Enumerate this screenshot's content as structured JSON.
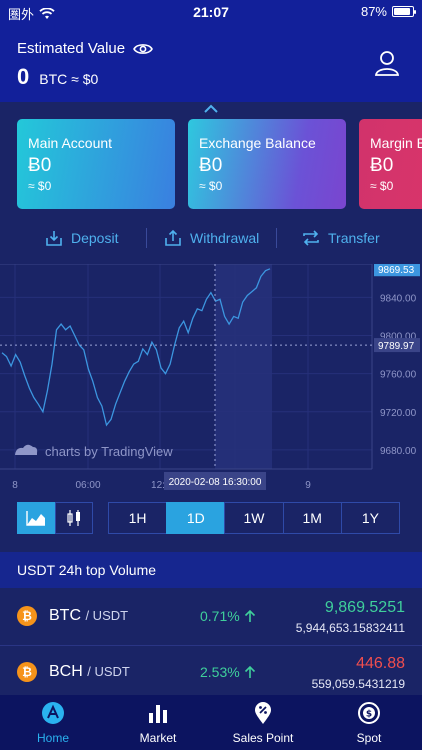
{
  "status_bar": {
    "carrier": "圏外",
    "time": "21:07",
    "battery": "87%",
    "battery_level": 0.87
  },
  "header": {
    "estimated_label": "Estimated Value",
    "estimated_value": "0",
    "estimated_sub": "BTC ≈ $0"
  },
  "cards": [
    {
      "title": "Main Account",
      "amount": "0",
      "fiat": "≈ $0"
    },
    {
      "title": "Exchange Balance",
      "amount": "0",
      "fiat": "≈ $0"
    },
    {
      "title": "Margin B",
      "amount": "0",
      "fiat": "≈ $0"
    }
  ],
  "actions": {
    "deposit": "Deposit",
    "withdrawal": "Withdrawal",
    "transfer": "Transfer"
  },
  "chart": {
    "watermark": "charts by TradingView",
    "price_last": "9869.53",
    "price_cursor": "9789.97",
    "time_cursor": "2020-02-08 16:30:00",
    "x_ticks": [
      "8",
      "06:00",
      "12:",
      "9"
    ],
    "y_ticks": [
      "9840.00",
      "9800.00",
      "9760.00",
      "9720.00",
      "9680.00"
    ],
    "colors": {
      "line": "#3c96e0",
      "highlight": "#242f78",
      "last_badge": "#3c96e0"
    }
  },
  "chart_data": {
    "type": "line",
    "title": "",
    "xlabel": "",
    "ylabel": "",
    "ylim": [
      9660,
      9875
    ],
    "series": [
      {
        "values": [
          9782,
          9778,
          9768,
          9780,
          9772,
          9758,
          9745,
          9735,
          9728,
          9720,
          9742,
          9770,
          9806,
          9812,
          9806,
          9810,
          9800,
          9790,
          9785,
          9765,
          9752,
          9735,
          9726,
          9706,
          9712,
          9728,
          9740,
          9752,
          9762,
          9770,
          9773,
          9786,
          9780,
          9793,
          9785,
          9766,
          9760,
          9770,
          9790,
          9808,
          9815,
          9803,
          9818,
          9828,
          9826,
          9838,
          9845,
          9836,
          9838,
          9820,
          9812,
          9820,
          9818,
          9835,
          9842,
          9846,
          9850,
          9862,
          9868,
          9870
        ]
      }
    ]
  },
  "chart_controls": {
    "intervals": [
      "1H",
      "1D",
      "1W",
      "1M",
      "1Y"
    ],
    "active_interval": "1D"
  },
  "top_volume": {
    "title": "USDT 24h top Volume",
    "rows": [
      {
        "coin": "BTC",
        "quote": "/ USDT",
        "change": "0.71%",
        "price": "9,869.5251",
        "volume": "5,944,653.15832411",
        "price_color": "#3fcf9b"
      },
      {
        "coin": "BCH",
        "quote": "/ USDT",
        "change": "2.53%",
        "price": "446.88",
        "volume": "559,059.5431219",
        "price_color": "#f04e4e"
      }
    ]
  },
  "nav": [
    {
      "label": "Home",
      "icon": "home-icon"
    },
    {
      "label": "Market",
      "icon": "market-icon"
    },
    {
      "label": "Sales Point",
      "icon": "sales-point-icon"
    },
    {
      "label": "Spot",
      "icon": "spot-icon"
    }
  ]
}
